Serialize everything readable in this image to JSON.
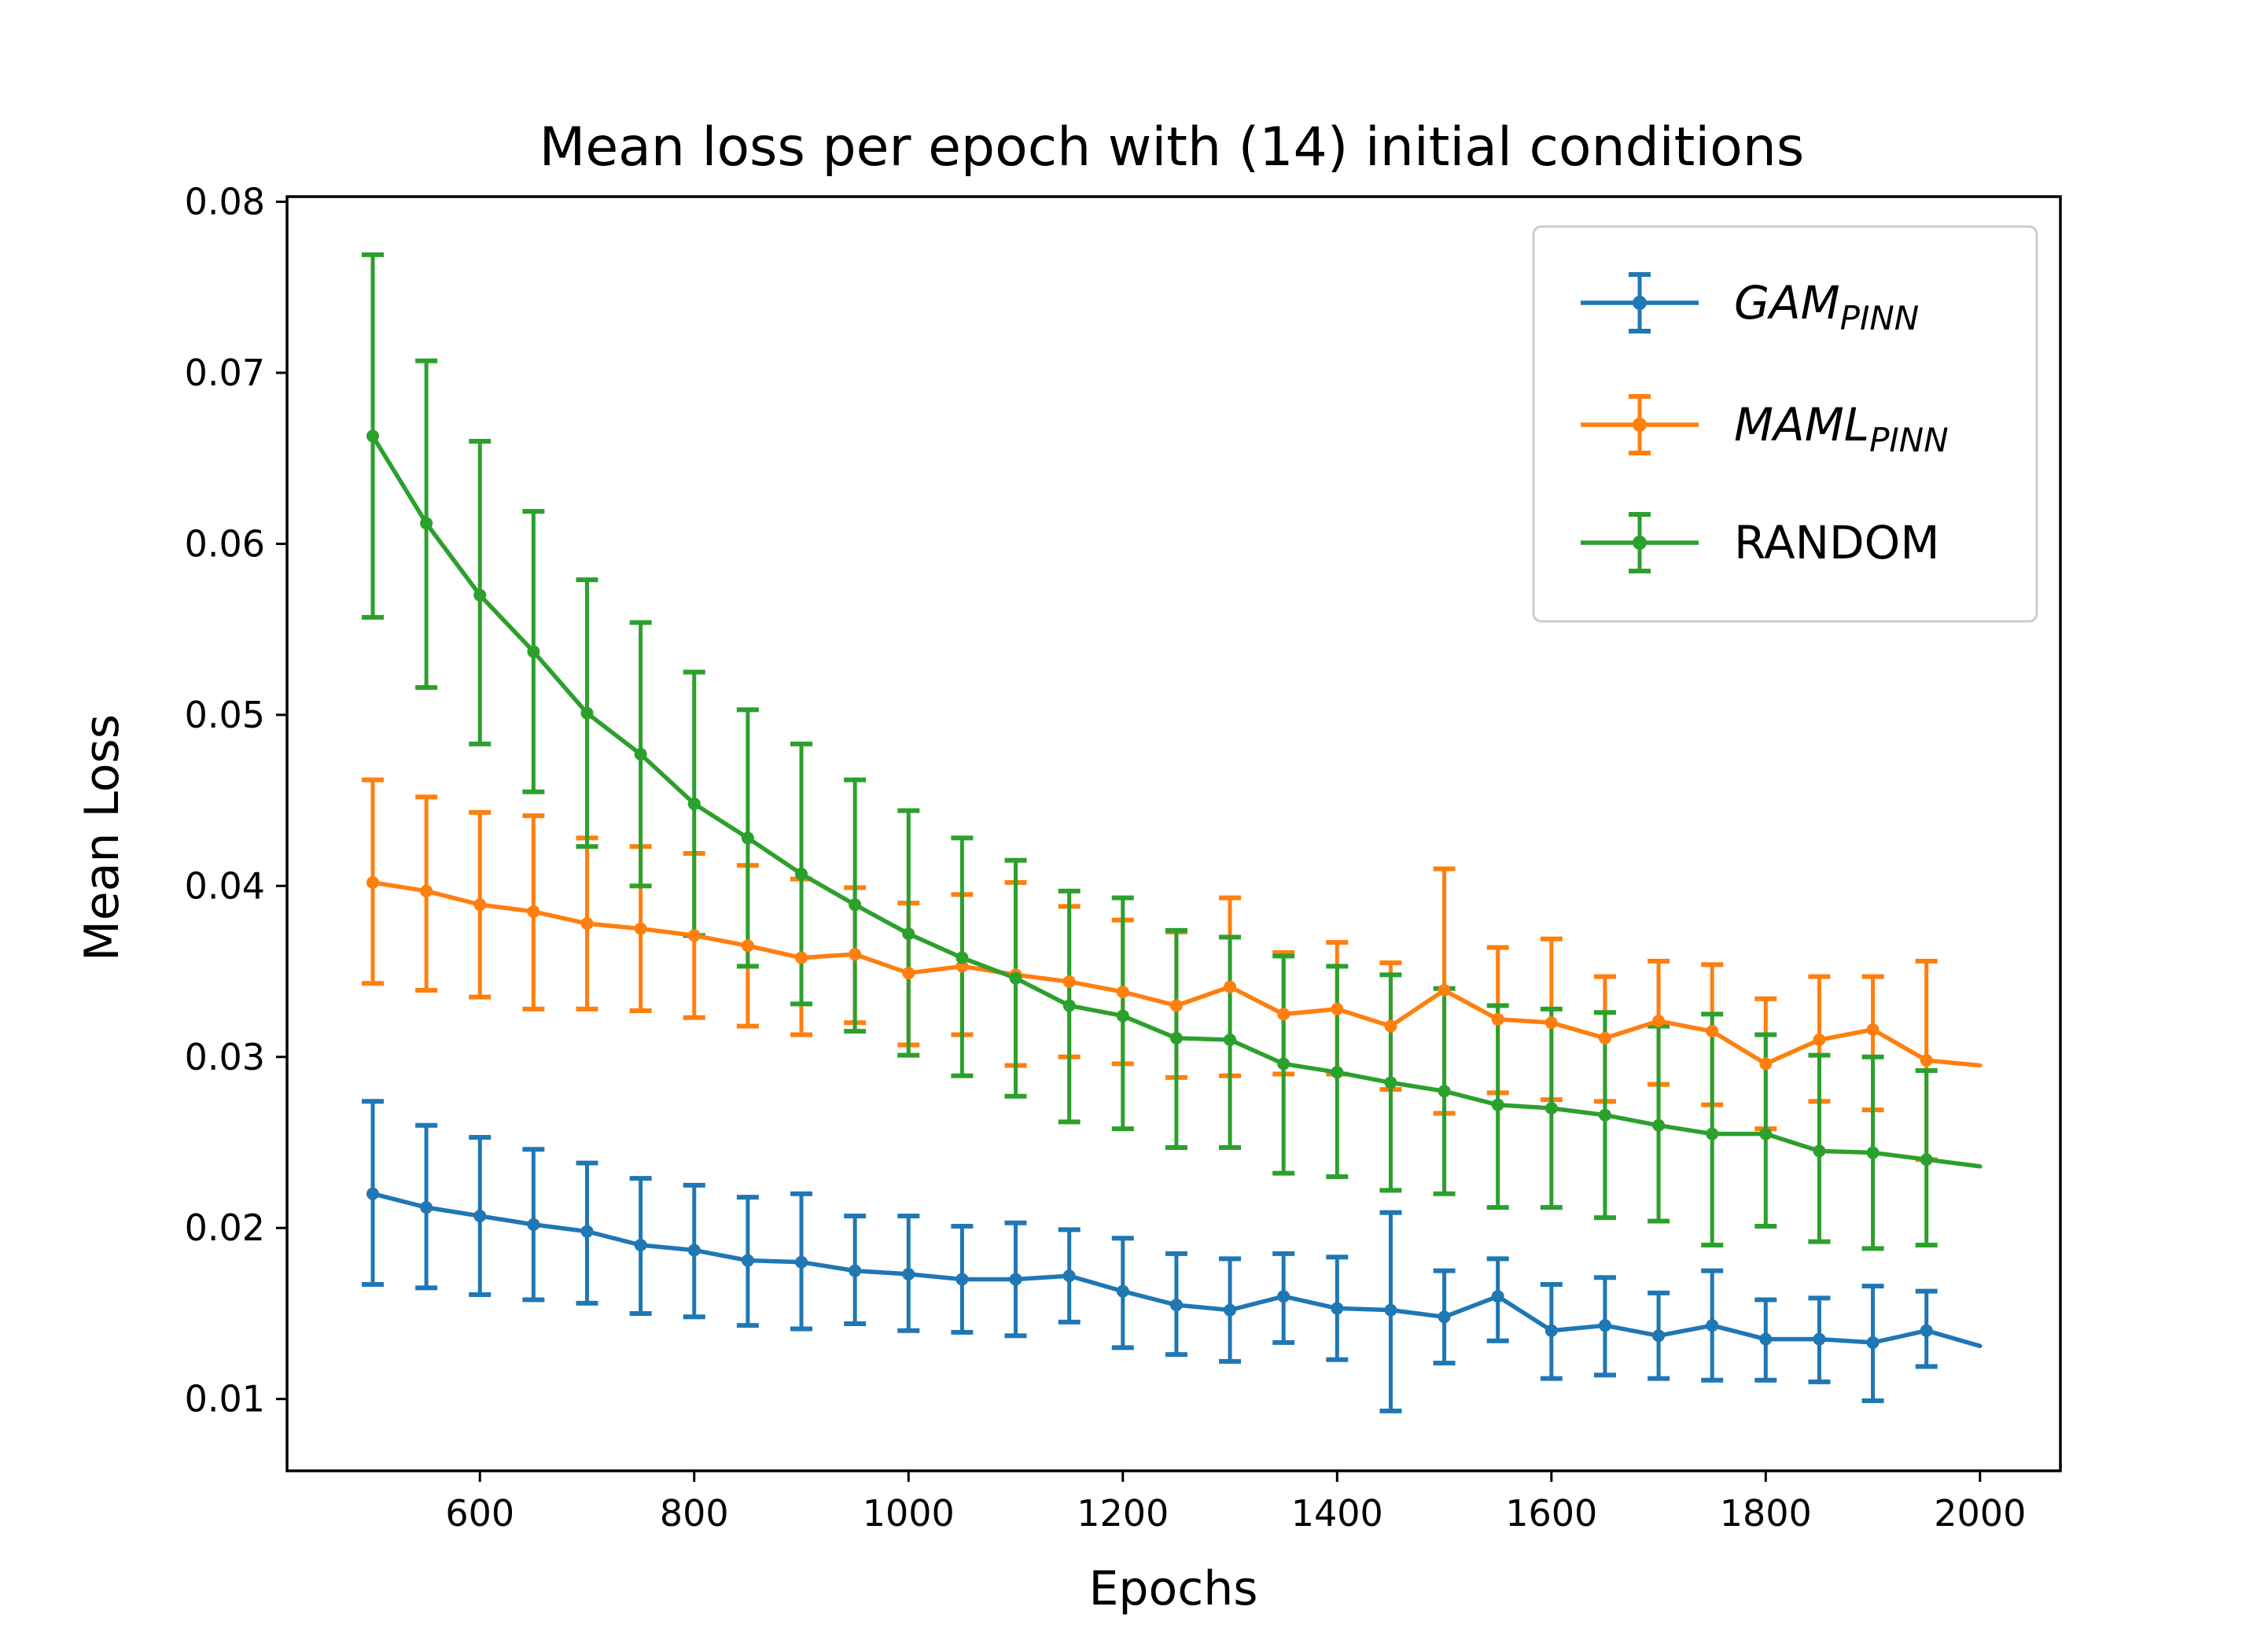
{
  "chart_data": {
    "type": "line",
    "title": "Mean loss per epoch with (14) initial conditions",
    "xlabel": "Epochs",
    "ylabel": "Mean Loss",
    "xlim": [
      420,
      2075
    ],
    "ylim": [
      0.0058,
      0.0803
    ],
    "xticks": [
      600,
      800,
      1000,
      1200,
      1400,
      1600,
      1800,
      2000
    ],
    "yticks": [
      0.01,
      0.02,
      0.03,
      0.04,
      0.05,
      0.06,
      0.07,
      0.08
    ],
    "xtick_labels": [
      "600",
      "800",
      "1000",
      "1200",
      "1400",
      "1600",
      "1800",
      "2000"
    ],
    "ytick_labels": [
      "0.01",
      "0.02",
      "0.03",
      "0.04",
      "0.05",
      "0.06",
      "0.07",
      "0.08"
    ],
    "legend_position": "top-right",
    "series": [
      {
        "name": "GAM",
        "subscript": "PINN",
        "italic": true,
        "color": "#1f77b4",
        "x": [
          500,
          550,
          600,
          650,
          700,
          750,
          800,
          850,
          900,
          950,
          1000,
          1050,
          1100,
          1150,
          1200,
          1250,
          1300,
          1350,
          1400,
          1450,
          1500,
          1550,
          1600,
          1650,
          1700,
          1750,
          1800,
          1850,
          1900,
          1950,
          2000
        ],
        "mean": [
          0.022,
          0.0212,
          0.0207,
          0.0202,
          0.0198,
          0.019,
          0.0187,
          0.0181,
          0.018,
          0.0175,
          0.0173,
          0.017,
          0.017,
          0.0172,
          0.0163,
          0.0155,
          0.0152,
          0.016,
          0.0153,
          0.0152,
          0.0148,
          0.016,
          0.014,
          0.0143,
          0.0137,
          0.0143,
          0.0135,
          0.0135,
          0.0133,
          0.014,
          0.0131
        ],
        "upper": [
          0.0274,
          0.026,
          0.0253,
          0.0246,
          0.0238,
          0.0229,
          0.0225,
          0.0218,
          0.022,
          0.0207,
          0.0207,
          0.0201,
          0.0203,
          0.0199,
          0.0194,
          0.0185,
          0.0182,
          0.0185,
          0.0183,
          0.0209,
          0.0175,
          0.0182,
          0.0167,
          0.0171,
          0.0162,
          0.0175,
          0.0158,
          0.0159,
          0.0166,
          0.0163,
          null
        ],
        "lower": [
          0.0167,
          0.0165,
          0.0161,
          0.0158,
          0.0156,
          0.015,
          0.0148,
          0.0143,
          0.0141,
          0.0144,
          0.014,
          0.0139,
          0.0137,
          0.0145,
          0.013,
          0.0126,
          0.0122,
          0.0133,
          0.0123,
          0.0093,
          0.0121,
          0.0134,
          0.0112,
          0.0114,
          0.0112,
          0.0111,
          0.0111,
          0.011,
          0.0099,
          0.0119,
          null
        ]
      },
      {
        "name": "MAML",
        "subscript": "PINN",
        "italic": true,
        "color": "#ff7f0e",
        "x": [
          500,
          550,
          600,
          650,
          700,
          750,
          800,
          850,
          900,
          950,
          1000,
          1050,
          1100,
          1150,
          1200,
          1250,
          1300,
          1350,
          1400,
          1450,
          1500,
          1550,
          1600,
          1650,
          1700,
          1750,
          1800,
          1850,
          1900,
          1950,
          2000
        ],
        "mean": [
          0.0402,
          0.0397,
          0.0389,
          0.0385,
          0.0378,
          0.0375,
          0.0371,
          0.0365,
          0.0358,
          0.036,
          0.0349,
          0.0353,
          0.0348,
          0.0344,
          0.0338,
          0.033,
          0.0341,
          0.0325,
          0.0328,
          0.0318,
          0.0339,
          0.0322,
          0.032,
          0.0311,
          0.0321,
          0.0315,
          0.0296,
          0.031,
          0.0316,
          0.0298,
          0.0295
        ],
        "upper": [
          0.0462,
          0.0452,
          0.0443,
          0.0441,
          0.0428,
          0.0423,
          0.0419,
          0.0412,
          0.0404,
          0.0399,
          0.039,
          0.0395,
          0.0402,
          0.0388,
          0.038,
          0.0373,
          0.0393,
          0.0361,
          0.0367,
          0.0355,
          0.041,
          0.0364,
          0.0369,
          0.0347,
          0.0356,
          0.0354,
          0.0334,
          0.0347,
          0.0347,
          0.0356,
          null
        ],
        "lower": [
          0.0343,
          0.0339,
          0.0335,
          0.0328,
          0.0328,
          0.0327,
          0.0323,
          0.0318,
          0.0313,
          0.032,
          0.0307,
          0.0313,
          0.0295,
          0.03,
          0.0296,
          0.0288,
          0.0289,
          0.029,
          0.029,
          0.0281,
          0.0267,
          0.0279,
          0.0275,
          0.0274,
          0.0284,
          0.0272,
          0.0258,
          0.0274,
          0.0269,
          0.024,
          null
        ]
      },
      {
        "name": "RANDOM",
        "subscript": "",
        "italic": false,
        "color": "#2ca02c",
        "x": [
          500,
          550,
          600,
          650,
          700,
          750,
          800,
          850,
          900,
          950,
          1000,
          1050,
          1100,
          1150,
          1200,
          1250,
          1300,
          1350,
          1400,
          1450,
          1500,
          1550,
          1600,
          1650,
          1700,
          1750,
          1800,
          1850,
          1900,
          1950,
          2000
        ],
        "mean": [
          0.0663,
          0.0612,
          0.057,
          0.0537,
          0.0501,
          0.0477,
          0.0448,
          0.0428,
          0.0407,
          0.0389,
          0.0372,
          0.0358,
          0.0346,
          0.033,
          0.0324,
          0.0311,
          0.031,
          0.0296,
          0.0291,
          0.0285,
          0.028,
          0.0272,
          0.027,
          0.0266,
          0.026,
          0.0255,
          0.0255,
          0.0245,
          0.0244,
          0.024,
          0.0236
        ],
        "upper": [
          0.0769,
          0.0707,
          0.066,
          0.0619,
          0.0579,
          0.0554,
          0.0525,
          0.0503,
          0.0483,
          0.0462,
          0.0444,
          0.0428,
          0.0415,
          0.0397,
          0.0393,
          0.0374,
          0.037,
          0.0359,
          0.0353,
          0.0348,
          0.034,
          0.033,
          0.0328,
          0.0326,
          0.0318,
          0.0325,
          0.0313,
          0.0301,
          0.03,
          0.0292,
          null
        ],
        "lower": [
          0.0557,
          0.0516,
          0.0483,
          0.0455,
          0.0423,
          0.04,
          0.0371,
          0.0353,
          0.0331,
          0.0315,
          0.0301,
          0.0289,
          0.0277,
          0.0262,
          0.0258,
          0.0247,
          0.0247,
          0.0232,
          0.023,
          0.0222,
          0.022,
          0.0212,
          0.0212,
          0.0206,
          0.0204,
          0.019,
          0.0201,
          0.0192,
          0.0188,
          0.019,
          null
        ]
      }
    ]
  }
}
